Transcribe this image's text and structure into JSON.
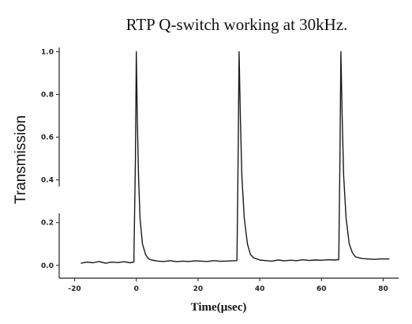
{
  "chart_data": {
    "type": "line",
    "title": "RTP Q-switch working at 30kHz.",
    "xlabel": "Time(μsec)",
    "ylabel": "Transmission",
    "xlim": [
      -25,
      85
    ],
    "ylim": [
      -0.06,
      1.02
    ],
    "x_ticks": [
      -20,
      0,
      20,
      40,
      60,
      80
    ],
    "x_tick_labels": [
      "-20",
      "0",
      "20",
      "40",
      "60",
      "80"
    ],
    "y_ticks": [
      0.0,
      0.2,
      0.4,
      0.6,
      0.8,
      1.0
    ],
    "y_tick_labels": [
      "0.0",
      "0.2",
      "0.4",
      "0.6",
      "0.8",
      "1.0"
    ],
    "grid": false,
    "legend": "none",
    "series": [
      {
        "x": [
          -18,
          -16,
          -14,
          -12,
          -10,
          -8,
          -6,
          -4,
          -2,
          -0.8,
          -0.3,
          0.0,
          0.3,
          0.7,
          1.2,
          2.0,
          3.0,
          4.0,
          5.0,
          7.0,
          9.0,
          11.0,
          13.0,
          15.0,
          17.0,
          19.0,
          21.0,
          23.0,
          25.0,
          27.0,
          29.0,
          31.0,
          32.6,
          33.0,
          33.3,
          33.7,
          34.2,
          35.0,
          36.0,
          37.0,
          38.0,
          40.0,
          42.0,
          44.0,
          46.0,
          48.0,
          50.0,
          52.0,
          54.0,
          56.0,
          58.0,
          60.0,
          62.0,
          64.0,
          65.6,
          66.0,
          66.3,
          66.7,
          67.2,
          68.0,
          69.0,
          70.0,
          71.0,
          73.0,
          75.0,
          77.0,
          79.0,
          81.0,
          82.0
        ],
        "y": [
          0.01,
          0.015,
          0.012,
          0.018,
          0.01,
          0.015,
          0.013,
          0.017,
          0.012,
          0.015,
          0.5,
          1.0,
          0.7,
          0.42,
          0.22,
          0.1,
          0.05,
          0.03,
          0.025,
          0.02,
          0.018,
          0.022,
          0.017,
          0.02,
          0.018,
          0.021,
          0.02,
          0.018,
          0.022,
          0.019,
          0.02,
          0.021,
          0.022,
          0.5,
          1.0,
          0.7,
          0.42,
          0.22,
          0.1,
          0.05,
          0.035,
          0.025,
          0.022,
          0.02,
          0.025,
          0.021,
          0.024,
          0.022,
          0.026,
          0.023,
          0.025,
          0.024,
          0.026,
          0.025,
          0.026,
          0.5,
          1.0,
          0.7,
          0.42,
          0.22,
          0.1,
          0.06,
          0.04,
          0.032,
          0.03,
          0.028,
          0.03,
          0.03,
          0.03
        ]
      }
    ]
  }
}
